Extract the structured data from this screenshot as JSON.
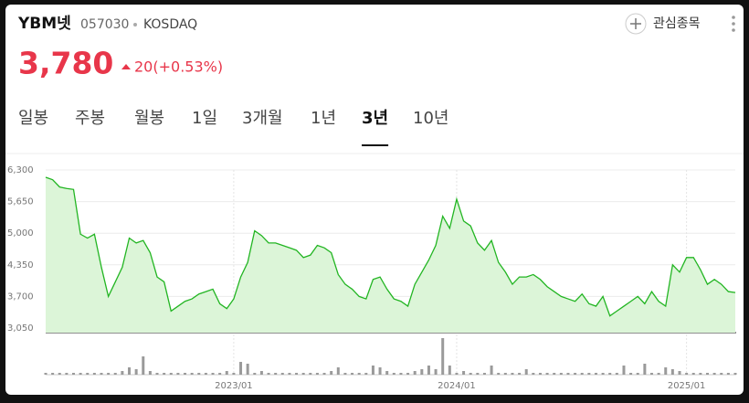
{
  "header": {
    "name": "YBM넷",
    "code": "057030",
    "market": "KOSDAQ",
    "watch": "관심종목",
    "price": "3,780",
    "change": "20(+0.53%)"
  },
  "tabs": [
    "일봉",
    "주봉",
    "월봉",
    "1일",
    "3개월",
    "1년",
    "3년",
    "10년"
  ],
  "selected_tab": 6,
  "chart_data": {
    "type": "line",
    "color": "#22b522",
    "fill": "#dcf5d8",
    "volume_color": "#9a9a9a",
    "ylim": [
      3050,
      6300
    ],
    "yticks": [
      {
        "value": 3050,
        "label": "3,050"
      },
      {
        "value": 3700,
        "label": "3,700"
      },
      {
        "value": 4350,
        "label": "4,350"
      },
      {
        "value": 5000,
        "label": "5,000"
      },
      {
        "value": 5650,
        "label": "5,650"
      },
      {
        "value": 6300,
        "label": "6,300"
      }
    ],
    "categories": [
      null,
      null,
      null,
      null,
      null,
      null,
      null,
      null,
      null,
      null,
      null,
      null,
      null,
      null,
      null,
      null,
      null,
      null,
      null,
      null,
      null,
      null,
      null,
      null,
      null,
      null,
      null,
      "2023/01",
      null,
      null,
      null,
      null,
      null,
      null,
      null,
      null,
      null,
      null,
      null,
      null,
      null,
      null,
      null,
      null,
      null,
      null,
      null,
      null,
      null,
      null,
      null,
      null,
      null,
      null,
      null,
      null,
      null,
      null,
      null,
      "2024/01",
      null,
      null,
      null,
      null,
      null,
      null,
      null,
      null,
      null,
      null,
      null,
      null,
      null,
      null,
      null,
      null,
      null,
      null,
      null,
      null,
      null,
      null,
      null,
      null,
      null,
      null,
      null,
      null,
      null,
      null,
      null,
      null,
      "2025/01",
      null,
      null,
      null,
      null,
      null,
      null,
      null
    ],
    "values": [
      6150,
      6100,
      5950,
      5920,
      5900,
      4980,
      4900,
      4980,
      4300,
      3700,
      4000,
      4300,
      4900,
      4800,
      4850,
      4600,
      4100,
      4000,
      3400,
      3500,
      3600,
      3650,
      3750,
      3800,
      3850,
      3550,
      3450,
      3650,
      4100,
      4400,
      5050,
      4950,
      4800,
      4800,
      4750,
      4700,
      4650,
      4500,
      4550,
      4750,
      4700,
      4600,
      4150,
      3950,
      3850,
      3700,
      3650,
      4050,
      4100,
      3850,
      3650,
      3600,
      3500,
      3950,
      4200,
      4450,
      4750,
      5350,
      5100,
      5700,
      5250,
      5150,
      4800,
      4650,
      4850,
      4400,
      4200,
      3950,
      4100,
      4100,
      4150,
      4050,
      3900,
      3800,
      3700,
      3650,
      3600,
      3750,
      3550,
      3500,
      3700,
      3300,
      3400,
      3500,
      3600,
      3700,
      3550,
      3800,
      3600,
      3500,
      4350,
      4200,
      4500,
      4500,
      4250,
      3950,
      4050,
      3950,
      3800,
      3780
    ],
    "volume": [
      1,
      1,
      1,
      1,
      1,
      1,
      1,
      1,
      1,
      1,
      1,
      2,
      4,
      3,
      10,
      2,
      1,
      1,
      1,
      1,
      1,
      1,
      1,
      1,
      1,
      1,
      2,
      1,
      7,
      6,
      1,
      2,
      1,
      1,
      1,
      1,
      1,
      1,
      1,
      1,
      1,
      2,
      4,
      1,
      1,
      1,
      1,
      5,
      4,
      2,
      1,
      1,
      1,
      2,
      3,
      5,
      3,
      20,
      5,
      1,
      2,
      1,
      1,
      1,
      5,
      1,
      1,
      1,
      1,
      3,
      1,
      1,
      1,
      1,
      1,
      1,
      1,
      1,
      1,
      1,
      1,
      1,
      1,
      5,
      1,
      1,
      6,
      1,
      1,
      4,
      3,
      2,
      1,
      1,
      1,
      1,
      1,
      1,
      1,
      1
    ]
  }
}
